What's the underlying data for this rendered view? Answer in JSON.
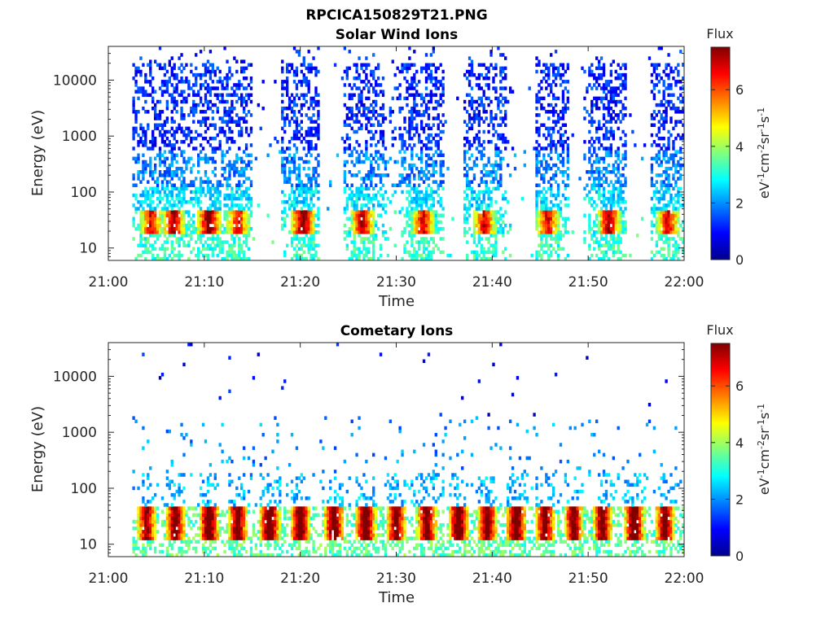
{
  "figure_title": "RPCICA150829T21.PNG",
  "colorbar": {
    "title": "Flux",
    "label": "eV-1cm-2sr-1s-1",
    "ticks": [
      "0",
      "2",
      "4",
      "6"
    ],
    "range": [
      0,
      7.5
    ],
    "colormap": "jet"
  },
  "chart_data": [
    {
      "type": "heatmap",
      "title": "Solar Wind Ions",
      "xlabel": "Time",
      "ylabel": "Energy (eV)",
      "x_ticks": [
        "21:00",
        "21:10",
        "21:20",
        "21:30",
        "21:40",
        "21:50",
        "22:00"
      ],
      "x_range_minutes": [
        0,
        60
      ],
      "y_ticks": [
        "10",
        "100",
        "1000",
        "10000"
      ],
      "y_scale": "log",
      "y_range": [
        6,
        40000
      ],
      "bursts": [
        {
          "center_min": 4.5,
          "peak_flux": 5.5
        },
        {
          "center_min": 6.8,
          "peak_flux": 6.0
        },
        {
          "center_min": 10.5,
          "peak_flux": 6.5
        },
        {
          "center_min": 13.5,
          "peak_flux": 5.5
        },
        {
          "center_min": 20.3,
          "peak_flux": 6.5
        },
        {
          "center_min": 26.5,
          "peak_flux": 6.0
        },
        {
          "center_min": 32.8,
          "peak_flux": 5.5
        },
        {
          "center_min": 39.2,
          "peak_flux": 5.5
        },
        {
          "center_min": 45.8,
          "peak_flux": 5.5
        },
        {
          "center_min": 52.2,
          "peak_flux": 6.0
        },
        {
          "center_min": 58.3,
          "peak_flux": 5.5
        }
      ]
    },
    {
      "type": "heatmap",
      "title": "Cometary Ions",
      "xlabel": "Time",
      "ylabel": "Energy (eV)",
      "x_ticks": [
        "21:00",
        "21:10",
        "21:20",
        "21:30",
        "21:40",
        "21:50",
        "22:00"
      ],
      "x_range_minutes": [
        0,
        60
      ],
      "y_ticks": [
        "10",
        "100",
        "1000",
        "10000"
      ],
      "y_scale": "log",
      "y_range": [
        6,
        40000
      ],
      "bursts": [
        {
          "center_min": 4.0,
          "peak_flux": 6.5
        },
        {
          "center_min": 7.0,
          "peak_flux": 7.0
        },
        {
          "center_min": 10.5,
          "peak_flux": 7.5
        },
        {
          "center_min": 13.5,
          "peak_flux": 7.0
        },
        {
          "center_min": 16.8,
          "peak_flux": 7.5
        },
        {
          "center_min": 20.0,
          "peak_flux": 7.5
        },
        {
          "center_min": 23.5,
          "peak_flux": 7.5
        },
        {
          "center_min": 26.8,
          "peak_flux": 7.5
        },
        {
          "center_min": 30.0,
          "peak_flux": 7.0
        },
        {
          "center_min": 33.2,
          "peak_flux": 7.0
        },
        {
          "center_min": 36.5,
          "peak_flux": 7.5
        },
        {
          "center_min": 39.5,
          "peak_flux": 7.0
        },
        {
          "center_min": 42.5,
          "peak_flux": 7.5
        },
        {
          "center_min": 45.5,
          "peak_flux": 7.0
        },
        {
          "center_min": 48.5,
          "peak_flux": 7.0
        },
        {
          "center_min": 51.5,
          "peak_flux": 7.0
        },
        {
          "center_min": 54.8,
          "peak_flux": 7.5
        },
        {
          "center_min": 58.0,
          "peak_flux": 7.0
        }
      ]
    }
  ]
}
